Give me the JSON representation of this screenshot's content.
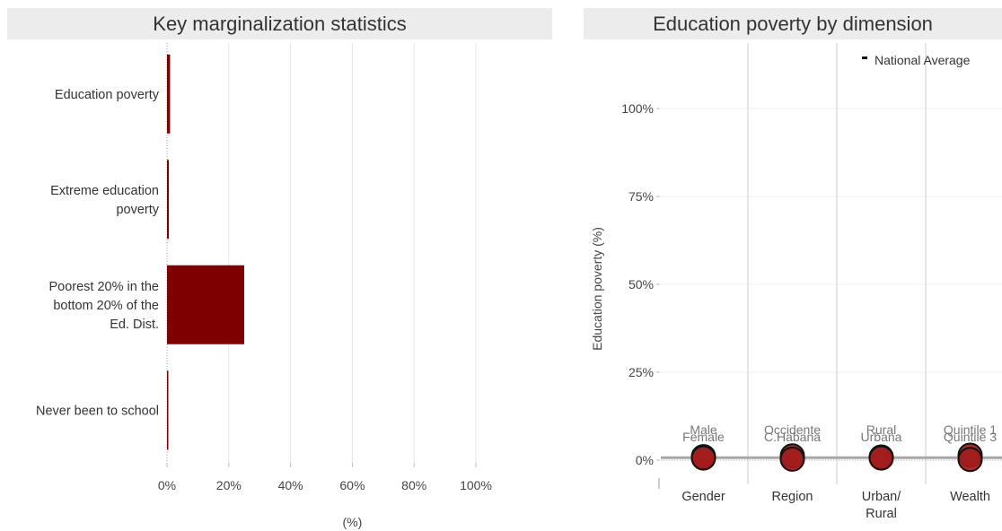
{
  "chart_data": [
    {
      "type": "bar",
      "orientation": "horizontal",
      "title": "Key marginalization statistics",
      "xlabel": "(%)",
      "ylabel": "",
      "categories": [
        [
          "Education poverty"
        ],
        [
          "Extreme education",
          "poverty"
        ],
        [
          "Poorest 20% in the",
          "bottom 20% of the",
          "Ed. Dist."
        ],
        [
          "Never been to school"
        ]
      ],
      "values": [
        1.0,
        0.6,
        25.0,
        0.3
      ],
      "xlim": [
        0,
        100
      ],
      "x_ticks": [
        0,
        20,
        40,
        60,
        80,
        100
      ],
      "x_tick_labels": [
        "0%",
        "20%",
        "40%",
        "60%",
        "80%",
        "100%"
      ],
      "grid": true,
      "bar_color": "#7f0000"
    },
    {
      "type": "scatter",
      "title": "Education poverty by dimension",
      "ylabel": "Education poverty (%)",
      "xlabel": "",
      "categories": [
        [
          "Gender"
        ],
        [
          "Region"
        ],
        [
          "Urban/",
          "Rural"
        ],
        [
          "Wealth"
        ]
      ],
      "ylim": [
        0,
        100
      ],
      "y_ticks": [
        0,
        25,
        50,
        75,
        100
      ],
      "y_tick_labels": [
        "0%",
        "25%",
        "50%",
        "75%",
        "100%"
      ],
      "legend": {
        "label": "National Average",
        "placement": "top-right"
      },
      "national_average": 0.7,
      "point_color": "#a31c1c",
      "points": [
        {
          "group": 0,
          "label": "Male",
          "value": 1.0,
          "label_row": 0
        },
        {
          "group": 0,
          "label": "Female",
          "value": 0.6,
          "label_row": 1
        },
        {
          "group": 1,
          "label": "Occidente",
          "value": 1.2,
          "label_row": 0
        },
        {
          "group": 1,
          "label": "C.Habana",
          "value": 0.3,
          "label_row": 1
        },
        {
          "group": 2,
          "label": "Rural",
          "value": 0.9,
          "label_row": 0
        },
        {
          "group": 2,
          "label": "Urbana",
          "value": 0.6,
          "label_row": 1
        },
        {
          "group": 3,
          "label": "Quintile 1",
          "value": 1.4,
          "label_row": 0
        },
        {
          "group": 3,
          "label": "Quintile 3",
          "value": 0.2,
          "label_row": 1
        }
      ]
    }
  ]
}
